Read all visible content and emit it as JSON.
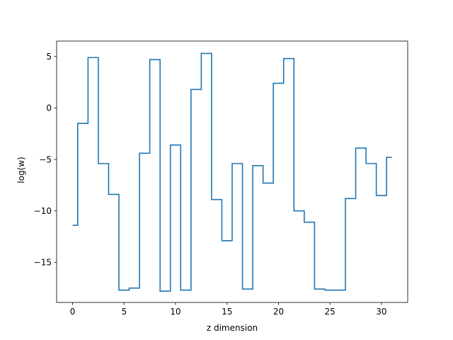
{
  "chart_data": {
    "type": "line",
    "drawstyle": "steps-mid",
    "title": "",
    "xlabel": "z dimension",
    "ylabel": "log(w)",
    "xlim": [
      -1.55,
      32.55
    ],
    "ylim": [
      -18.9,
      6.5
    ],
    "xticks": [
      0,
      5,
      10,
      15,
      20,
      25,
      30
    ],
    "yticks": [
      5,
      0,
      -5,
      -10,
      -15
    ],
    "yticklabels": [
      "5",
      "0",
      "−5",
      "−10",
      "−15"
    ],
    "grid": false,
    "line_color": "#1f77b4",
    "series": [
      {
        "x": [
          0,
          1,
          2,
          3,
          4,
          5,
          6,
          7,
          8,
          9,
          10,
          11,
          12,
          13,
          14,
          15,
          16,
          17,
          18,
          19,
          20,
          21,
          22,
          23,
          24,
          25,
          26,
          27,
          28,
          29,
          30,
          31
        ],
        "values": [
          -11.4,
          -1.5,
          4.9,
          -5.4,
          -8.4,
          -17.7,
          -17.5,
          -4.4,
          4.7,
          -17.8,
          -3.6,
          -17.7,
          1.8,
          5.3,
          -8.9,
          -12.9,
          -5.4,
          -17.6,
          -5.6,
          -7.3,
          2.4,
          4.8,
          -10.0,
          -11.1,
          -17.6,
          -17.7,
          -17.7,
          -8.8,
          -3.9,
          -5.4,
          -8.5,
          -4.8
        ]
      }
    ]
  }
}
